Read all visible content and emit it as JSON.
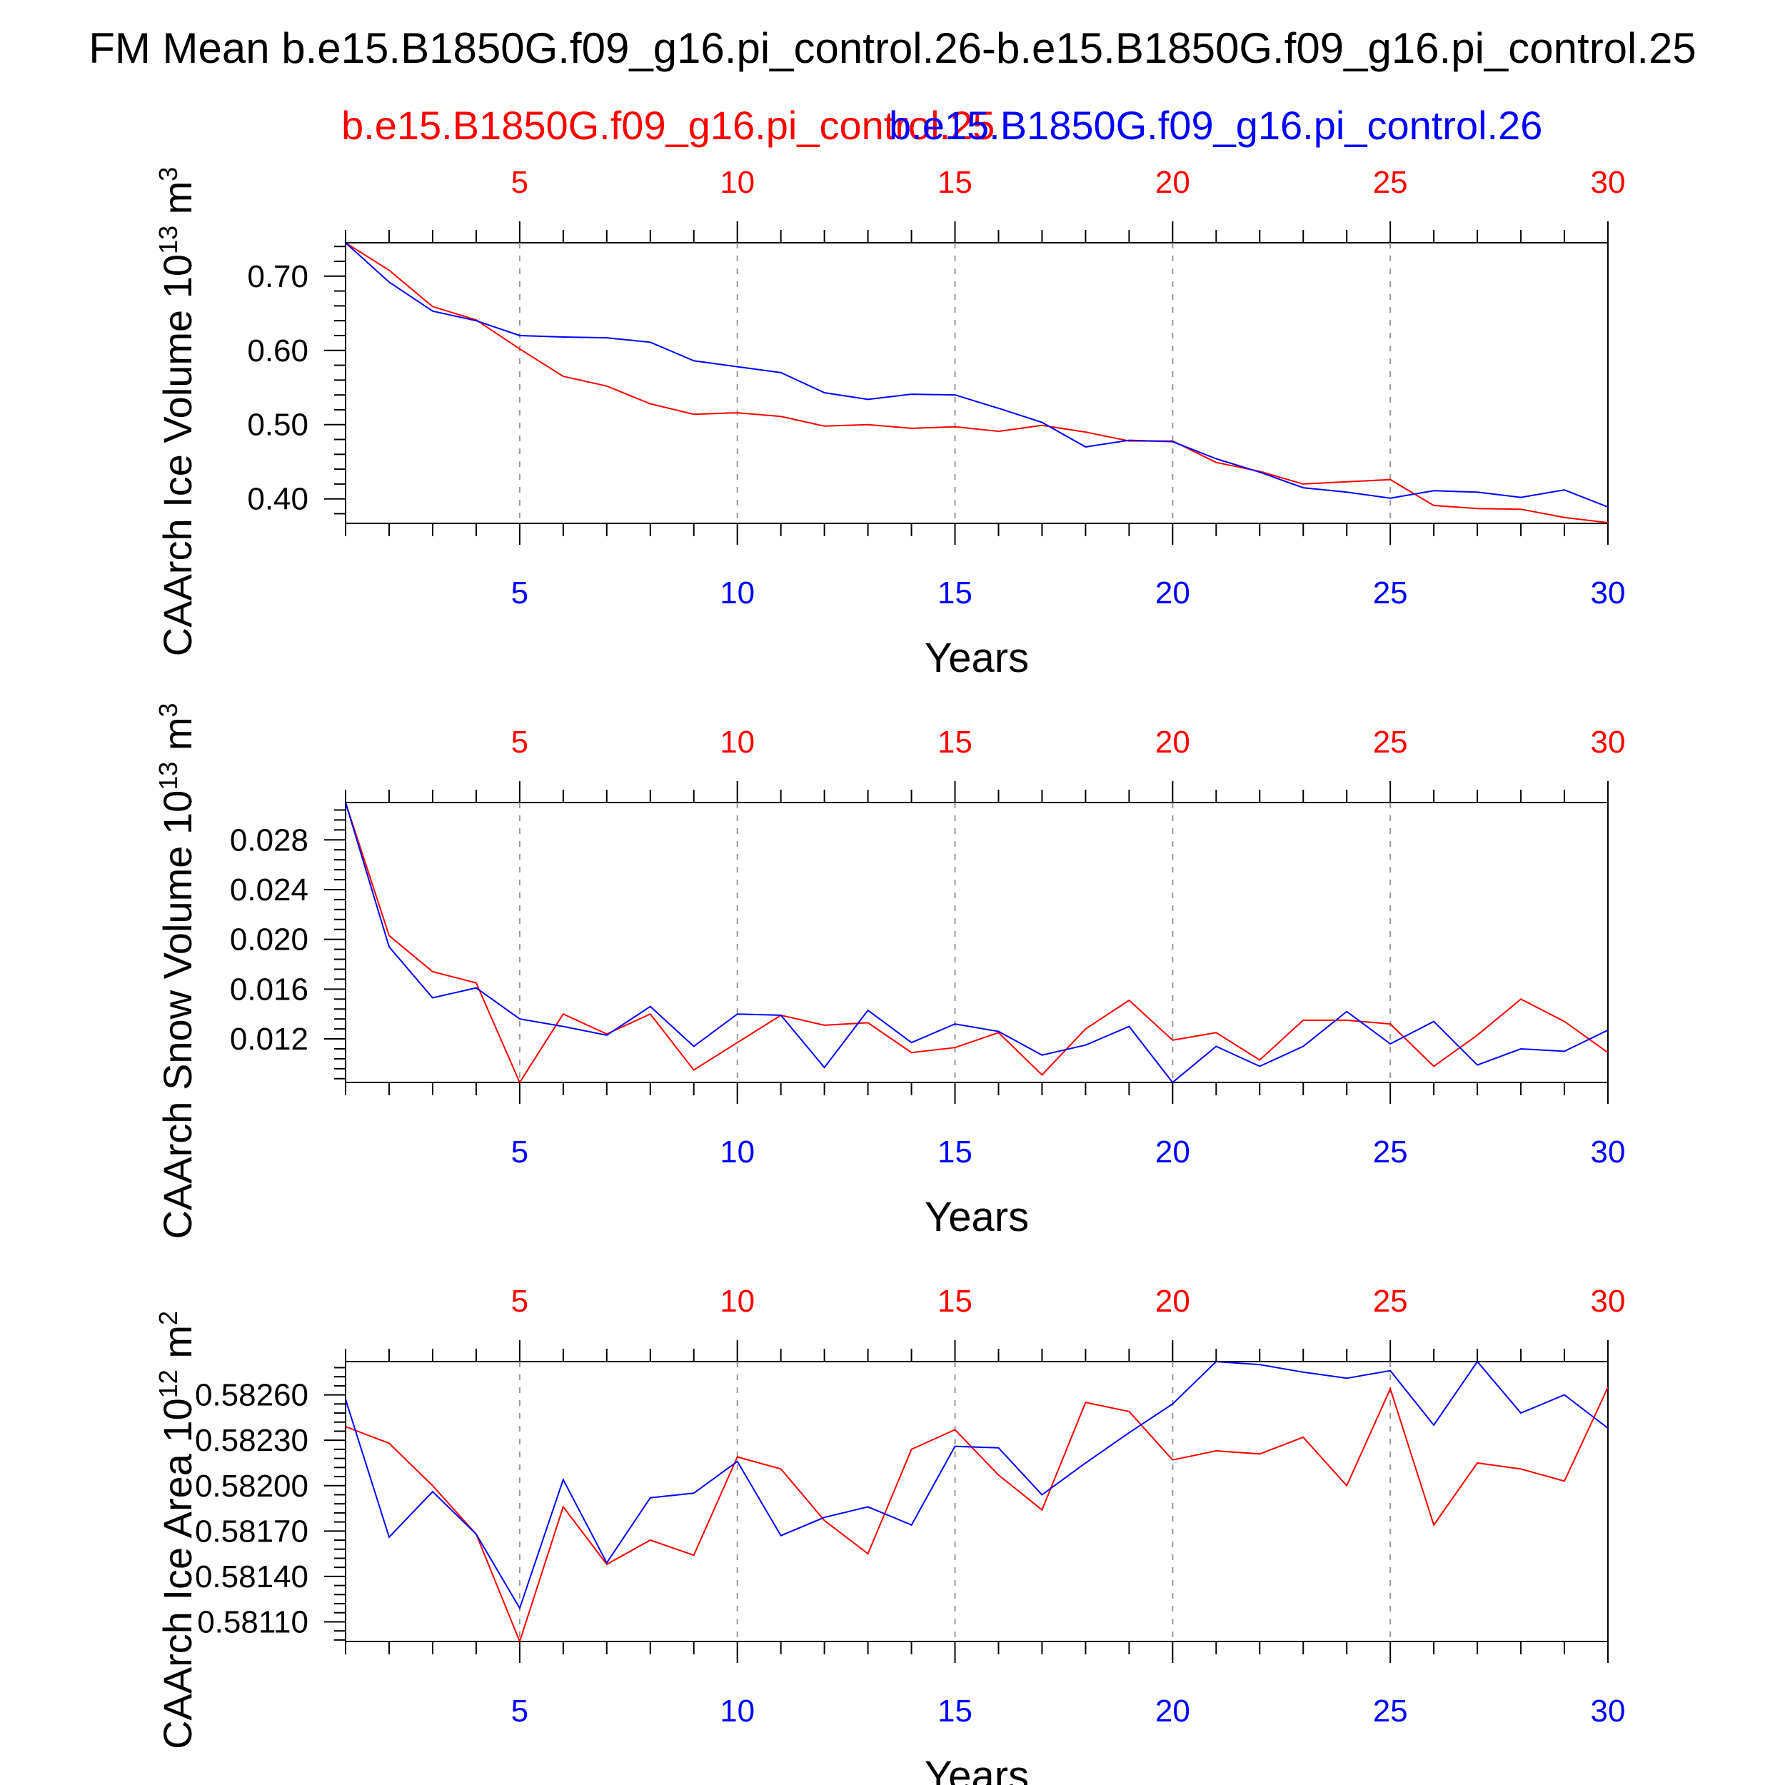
{
  "page": {
    "title": "FM Mean b.e15.B1850G.f09_g16.pi_control.26-b.e15.B1850G.f09_g16.pi_control.25",
    "case1_label": "b.e15.B1850G.f09_g16.pi_control.25",
    "case2_label": "b.e15.B1850G.f09_g16.pi_control.26",
    "case1_color": "#ff0000",
    "case2_color": "#0000ff"
  },
  "chart_data": [
    {
      "type": "line",
      "ylabel": "CAArch Ice Volume 10^13 m^3",
      "xlabel": "Years",
      "xlim": [
        1,
        30
      ],
      "ylim": [
        0.367,
        0.745
      ],
      "yticks": [
        0.4,
        0.5,
        0.6,
        0.7
      ],
      "ytick_labels": [
        "0.40",
        "0.50",
        "0.60",
        "0.70"
      ],
      "xticks": [
        5,
        10,
        15,
        20,
        25,
        30
      ],
      "xtick_labels": [
        "5",
        "10",
        "15",
        "20",
        "25",
        "30"
      ],
      "ygrid": false,
      "xgrid": "dashed at major ticks",
      "x": [
        1,
        2,
        3,
        4,
        5,
        6,
        7,
        8,
        9,
        10,
        11,
        12,
        13,
        14,
        15,
        16,
        17,
        18,
        19,
        20,
        21,
        22,
        23,
        24,
        25,
        26,
        27,
        28,
        29,
        30
      ],
      "series": [
        {
          "name": "b.e15.B1850G.f09_g16.pi_control.25",
          "color": "#ff0000",
          "values": [
            0.745,
            0.708,
            0.659,
            0.641,
            0.602,
            0.565,
            0.552,
            0.528,
            0.514,
            0.516,
            0.511,
            0.498,
            0.5,
            0.495,
            0.497,
            0.491,
            0.499,
            0.49,
            0.478,
            0.478,
            0.449,
            0.437,
            0.42,
            0.423,
            0.426,
            0.391,
            0.387,
            0.386,
            0.375,
            0.368
          ]
        },
        {
          "name": "b.e15.B1850G.f09_g16.pi_control.26",
          "color": "#0000ff",
          "values": [
            0.745,
            0.692,
            0.653,
            0.64,
            0.62,
            0.618,
            0.617,
            0.611,
            0.586,
            0.578,
            0.57,
            0.543,
            0.534,
            0.541,
            0.54,
            0.522,
            0.503,
            0.47,
            0.479,
            0.477,
            0.454,
            0.436,
            0.415,
            0.409,
            0.401,
            0.411,
            0.409,
            0.402,
            0.412,
            0.389
          ]
        }
      ]
    },
    {
      "type": "line",
      "ylabel": "CAArch Snow Volume 10^13 m^3",
      "xlabel": "Years",
      "xlim": [
        1,
        30
      ],
      "ylim": [
        0.0085,
        0.031
      ],
      "yticks": [
        0.012,
        0.016,
        0.02,
        0.024,
        0.028
      ],
      "ytick_labels": [
        "0.012",
        "0.016",
        "0.020",
        "0.024",
        "0.028"
      ],
      "xticks": [
        5,
        10,
        15,
        20,
        25,
        30
      ],
      "xtick_labels": [
        "5",
        "10",
        "15",
        "20",
        "25",
        "30"
      ],
      "ygrid": false,
      "xgrid": "dashed at major ticks",
      "x": [
        1,
        2,
        3,
        4,
        5,
        6,
        7,
        8,
        9,
        10,
        11,
        12,
        13,
        14,
        15,
        16,
        17,
        18,
        19,
        20,
        21,
        22,
        23,
        24,
        25,
        26,
        27,
        28,
        29,
        30
      ],
      "series": [
        {
          "name": "b.e15.B1850G.f09_g16.pi_control.25",
          "color": "#ff0000",
          "values": [
            0.031,
            0.0203,
            0.0174,
            0.0165,
            0.0085,
            0.014,
            0.0124,
            0.014,
            0.0095,
            0.0117,
            0.0139,
            0.0131,
            0.0133,
            0.0109,
            0.0113,
            0.0125,
            0.0091,
            0.0128,
            0.0151,
            0.0119,
            0.0125,
            0.0103,
            0.0135,
            0.0135,
            0.0132,
            0.0098,
            0.0123,
            0.0152,
            0.0134,
            0.0109
          ]
        },
        {
          "name": "b.e15.B1850G.f09_g16.pi_control.26",
          "color": "#0000ff",
          "values": [
            0.031,
            0.0194,
            0.0153,
            0.0161,
            0.0136,
            0.013,
            0.0123,
            0.0146,
            0.0114,
            0.014,
            0.0139,
            0.0097,
            0.0143,
            0.0117,
            0.0132,
            0.0126,
            0.0107,
            0.0115,
            0.013,
            0.0085,
            0.0114,
            0.0098,
            0.0114,
            0.0142,
            0.0116,
            0.0134,
            0.0099,
            0.0112,
            0.011,
            0.0127
          ]
        }
      ]
    },
    {
      "type": "line",
      "ylabel": "CAArch Ice Area 10^12 m^2",
      "xlabel": "Years",
      "xlim": [
        1,
        30
      ],
      "ylim": [
        0.58097,
        0.58282
      ],
      "yticks": [
        0.5811,
        0.5814,
        0.5817,
        0.582,
        0.5823,
        0.5826
      ],
      "ytick_labels": [
        "0.58110",
        "0.58140",
        "0.58170",
        "0.58200",
        "0.58230",
        "0.58260"
      ],
      "xticks": [
        5,
        10,
        15,
        20,
        25,
        30
      ],
      "xtick_labels": [
        "5",
        "10",
        "15",
        "20",
        "25",
        "30"
      ],
      "ygrid": false,
      "xgrid": "dashed at major ticks",
      "x": [
        1,
        2,
        3,
        4,
        5,
        6,
        7,
        8,
        9,
        10,
        11,
        12,
        13,
        14,
        15,
        16,
        17,
        18,
        19,
        20,
        21,
        22,
        23,
        24,
        25,
        26,
        27,
        28,
        29,
        30
      ],
      "series": [
        {
          "name": "b.e15.B1850G.f09_g16.pi_control.25",
          "color": "#ff0000",
          "values": [
            0.58239,
            0.58228,
            0.582,
            0.58168,
            0.58097,
            0.58186,
            0.58148,
            0.58164,
            0.58154,
            0.58219,
            0.58211,
            0.58177,
            0.58155,
            0.58224,
            0.58237,
            0.58207,
            0.58184,
            0.58255,
            0.58249,
            0.58217,
            0.58223,
            0.58221,
            0.58232,
            0.582,
            0.58264,
            0.58174,
            0.58215,
            0.58211,
            0.58203,
            0.58265
          ]
        },
        {
          "name": "b.e15.B1850G.f09_g16.pi_control.26",
          "color": "#0000ff",
          "values": [
            0.58257,
            0.58166,
            0.58196,
            0.58168,
            0.58119,
            0.58204,
            0.58149,
            0.58192,
            0.58195,
            0.58216,
            0.58167,
            0.58179,
            0.58186,
            0.58174,
            0.58226,
            0.58225,
            0.58194,
            0.58215,
            0.58235,
            0.58254,
            0.58282,
            0.5828,
            0.58275,
            0.58271,
            0.58276,
            0.5824,
            0.58282,
            0.58248,
            0.5826,
            0.58238
          ]
        }
      ]
    }
  ]
}
